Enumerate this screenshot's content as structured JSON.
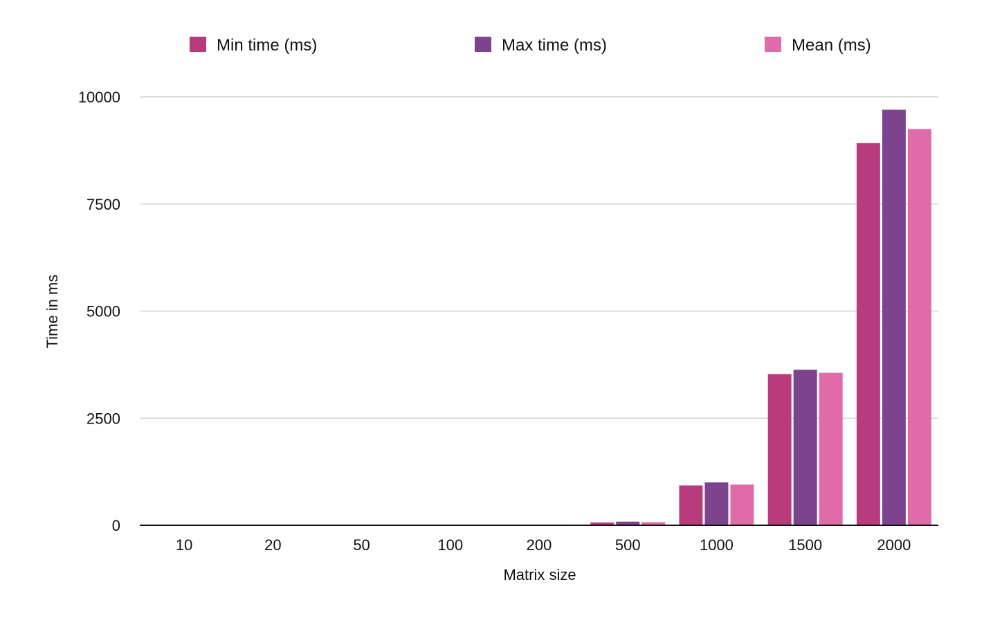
{
  "chart_data": {
    "type": "bar",
    "title": "",
    "xlabel": "Matrix size",
    "ylabel": "Time in ms",
    "categories": [
      "10",
      "20",
      "50",
      "100",
      "200",
      "500",
      "1000",
      "1500",
      "2000"
    ],
    "series": [
      {
        "name": "Min time (ms)",
        "color": "#b83b7c",
        "values": [
          0,
          0,
          0,
          1,
          6,
          65,
          930,
          3530,
          8920
        ]
      },
      {
        "name": "Max time (ms)",
        "color": "#7b448c",
        "values": [
          0,
          0,
          0,
          2,
          8,
          85,
          1000,
          3630,
          9700
        ]
      },
      {
        "name": "Mean (ms)",
        "color": "#df6ca8",
        "values": [
          0,
          0,
          0,
          1,
          7,
          72,
          950,
          3560,
          9250
        ]
      }
    ],
    "ylim": [
      0,
      10000
    ],
    "yticks": [
      0,
      2500,
      5000,
      7500,
      10000
    ],
    "ytick_labels": [
      "0",
      "2500",
      "5000",
      "7500",
      "10000"
    ],
    "grid": true,
    "legend_position": "top"
  }
}
